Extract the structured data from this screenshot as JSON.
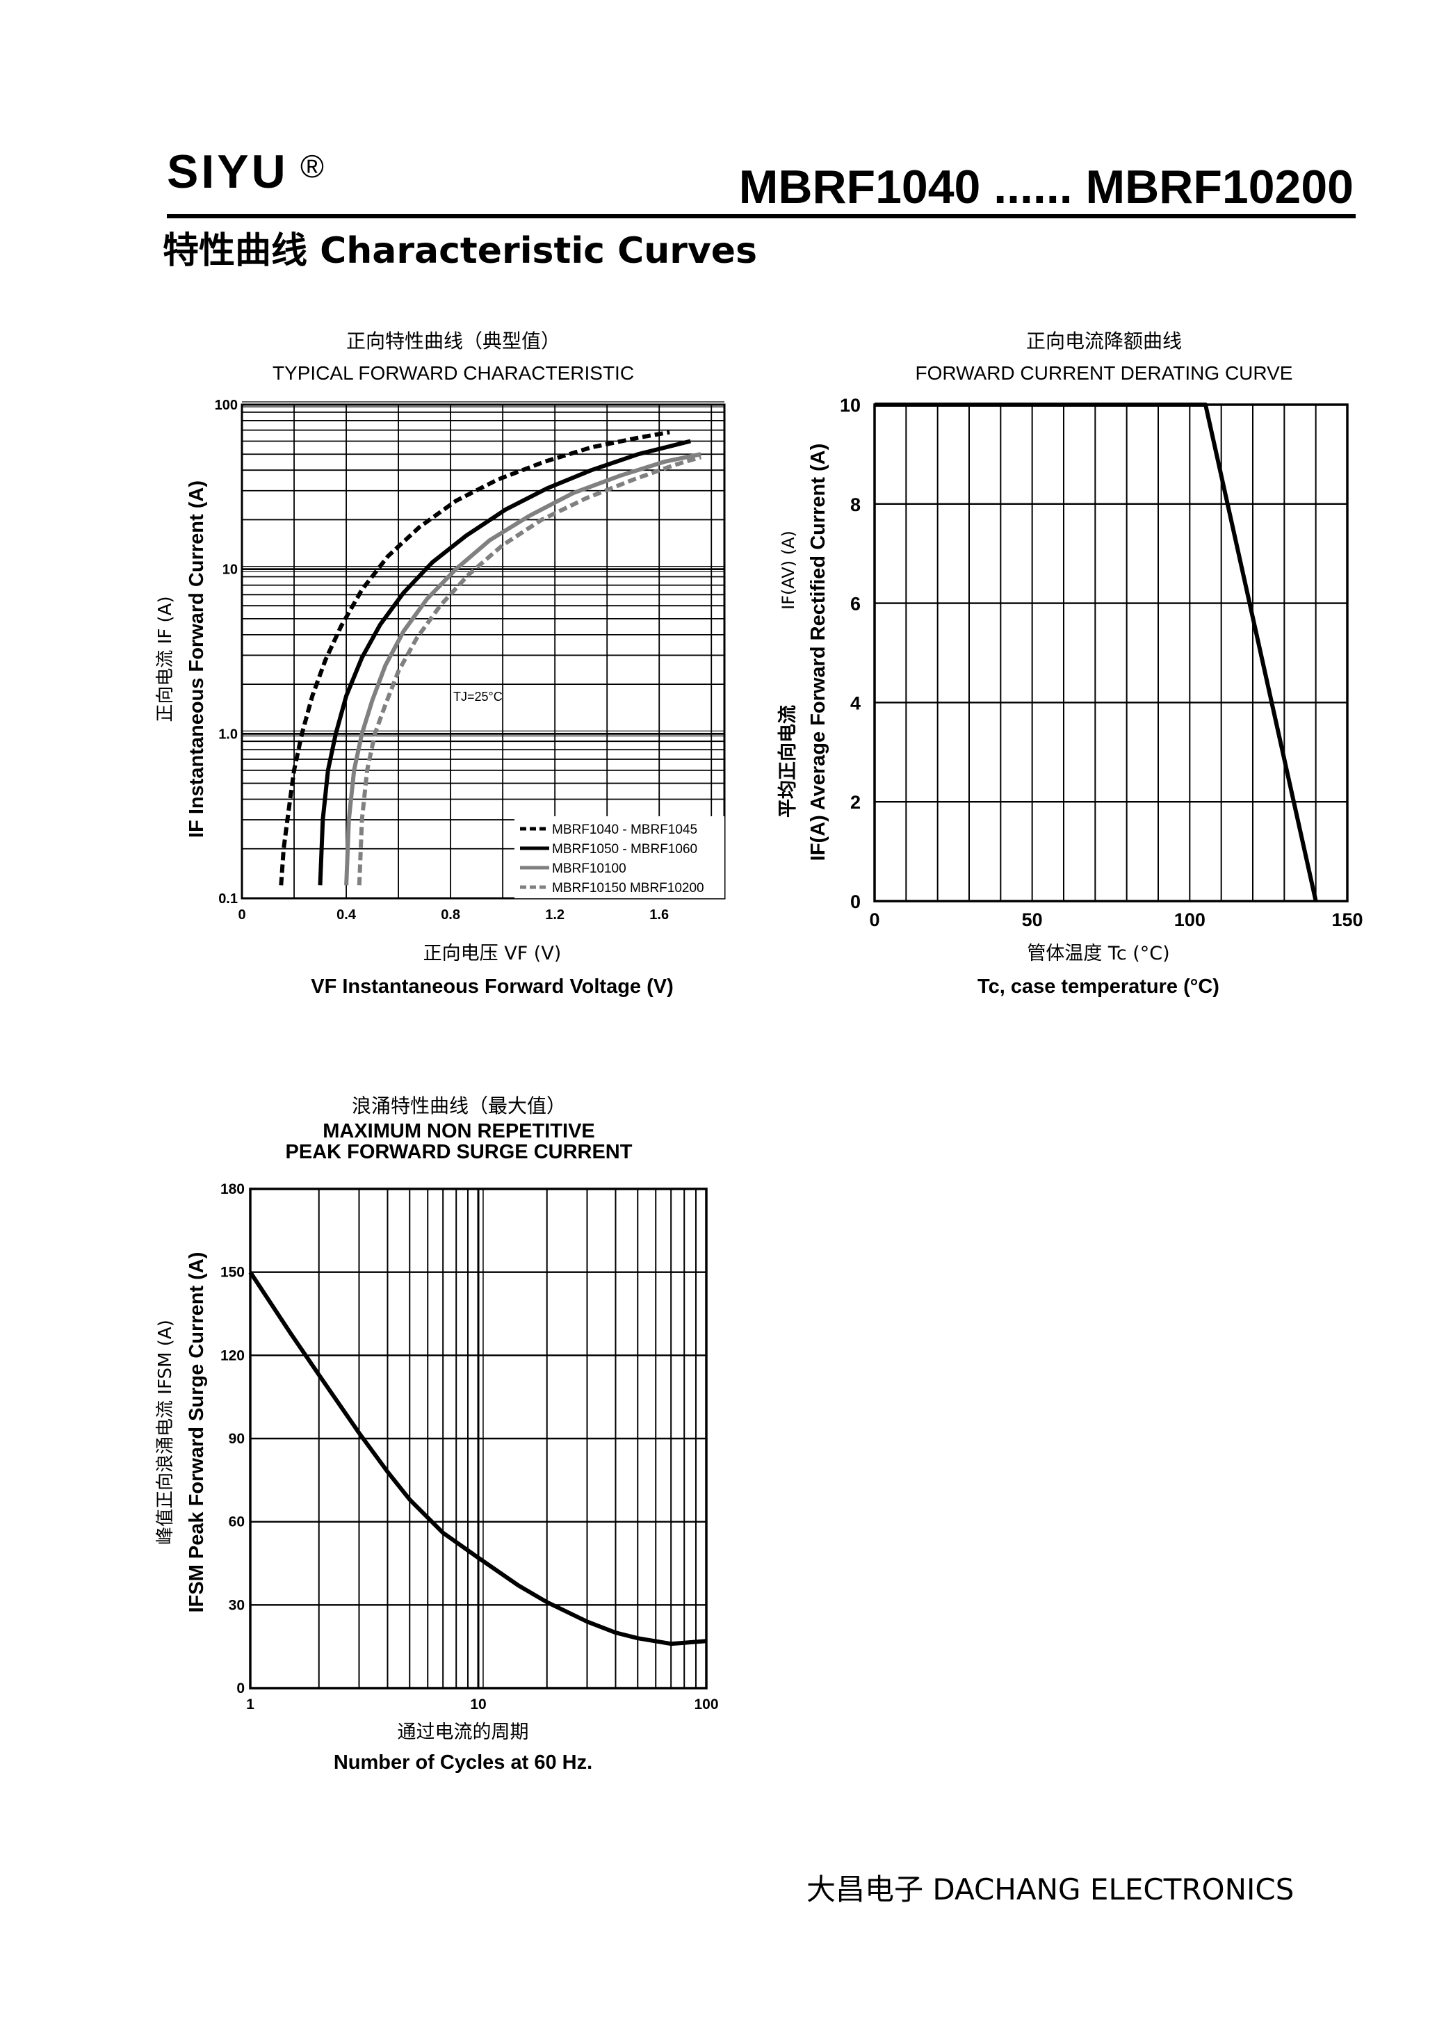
{
  "header": {
    "brand": "SIYU",
    "reg_mark": "®",
    "model_range": "MBRF1040 ...... MBRF10200",
    "subtitle": "特性曲线   Characteristic Curves"
  },
  "footer": {
    "company": "大昌电子   DACHANG ELECTRONICS"
  },
  "chart_data": [
    {
      "id": "forward",
      "type": "line",
      "title_cn": "正向特性曲线（典型值）",
      "title": "TYPICAL FORWARD CHARACTERISTIC",
      "xlabel_cn": "正向电压    VF (V)",
      "xlabel": "VF  Instantaneous Forward Voltage (V)",
      "ylabel_cn": "正向电流    IF (A)",
      "ylabel": "IF Instantaneous Forward Current (A)",
      "xlim": [
        0,
        1.85
      ],
      "ylim": [
        0.1,
        100
      ],
      "yscale": "log",
      "xticks": [
        "0",
        "0.4",
        "0.8",
        "1.2",
        "1.6"
      ],
      "yticks": [
        "0.1",
        "1.0",
        "10",
        "100"
      ],
      "annotation": "TJ=25°C",
      "grid": true,
      "legend_position": "bottom-right",
      "series": [
        {
          "name": "MBRF1040 - MBRF1045",
          "style": "dashed",
          "color": "#000000",
          "x": [
            0.15,
            0.16,
            0.18,
            0.2,
            0.23,
            0.27,
            0.32,
            0.38,
            0.46,
            0.56,
            0.68,
            0.82,
            0.98,
            1.16,
            1.34,
            1.52,
            1.64
          ],
          "y": [
            0.12,
            0.2,
            0.35,
            0.6,
            1.0,
            1.7,
            2.8,
            4.5,
            7.5,
            12,
            18,
            26,
            35,
            45,
            55,
            63,
            68
          ]
        },
        {
          "name": "MBRF1050 - MBRF1060",
          "style": "solid",
          "color": "#000000",
          "x": [
            0.3,
            0.31,
            0.33,
            0.36,
            0.4,
            0.46,
            0.53,
            0.62,
            0.73,
            0.86,
            1.01,
            1.17,
            1.34,
            1.52,
            1.72
          ],
          "y": [
            0.12,
            0.3,
            0.6,
            1.0,
            1.7,
            2.9,
            4.6,
            7.2,
            11,
            16,
            23,
            31,
            40,
            50,
            60
          ]
        },
        {
          "name": "MBRF10100",
          "style": "solid",
          "color": "#808080",
          "x": [
            0.4,
            0.41,
            0.43,
            0.46,
            0.5,
            0.55,
            0.62,
            0.71,
            0.82,
            0.95,
            1.1,
            1.27,
            1.45,
            1.62,
            1.76
          ],
          "y": [
            0.12,
            0.3,
            0.6,
            1.0,
            1.6,
            2.6,
            4.2,
            6.6,
            10,
            15,
            21,
            29,
            37,
            45,
            50
          ]
        },
        {
          "name": "MBRF10150 MBRF10200",
          "style": "dashed",
          "color": "#808080",
          "x": [
            0.45,
            0.46,
            0.48,
            0.51,
            0.55,
            0.6,
            0.67,
            0.76,
            0.87,
            1.0,
            1.15,
            1.32,
            1.5,
            1.66,
            1.76
          ],
          "y": [
            0.12,
            0.3,
            0.6,
            1.0,
            1.5,
            2.4,
            3.8,
            6.0,
            9.3,
            14,
            20,
            27,
            35,
            43,
            48
          ]
        }
      ]
    },
    {
      "id": "derating",
      "type": "line",
      "title_cn": "正向电流降额曲线",
      "title": "FORWARD CURRENT DERATING CURVE",
      "xlabel_cn": "管体温度  Tc (°C)",
      "xlabel": "Tc, case  temperature (°C)",
      "ylabel_cn": "平均正向电流",
      "ylabel_unit_cn": "IF(AV)   (A)",
      "ylabel": "IF(A)  Average Forward Rectified Current (A)",
      "xlim": [
        0,
        150
      ],
      "ylim": [
        0,
        10
      ],
      "xticks": [
        "0",
        "50",
        "100",
        "150"
      ],
      "yticks": [
        "0",
        "2",
        "4",
        "6",
        "8",
        "10"
      ],
      "grid": true,
      "series": [
        {
          "x": [
            0,
            105,
            140
          ],
          "y": [
            10,
            10,
            0
          ]
        }
      ]
    },
    {
      "id": "surge",
      "type": "line",
      "title_cn": "浪涌特性曲线（最大值）",
      "title": "MAXIMUM NON REPETITIVE",
      "title2": "PEAK FORWARD SURGE CURRENT",
      "xlabel_cn": "通过电流的周期",
      "xlabel": "Number  of  Cycles at 60 Hz.",
      "ylabel_cn": "峰值正向浪涌电流   IFSM (A)",
      "ylabel": "IFSM Peak Forward Surge Current (A)",
      "xlim": [
        1,
        100
      ],
      "xscale": "log",
      "ylim": [
        0,
        180
      ],
      "xticks": [
        "1",
        "10",
        "100"
      ],
      "yticks": [
        "0",
        "30",
        "60",
        "90",
        "120",
        "150",
        "180"
      ],
      "grid": true,
      "series": [
        {
          "x": [
            1,
            1.5,
            2,
            3,
            4,
            5,
            7,
            10,
            15,
            20,
            30,
            40,
            50,
            70,
            100
          ],
          "y": [
            150,
            128,
            113,
            92,
            78,
            68,
            56,
            47,
            37,
            31,
            24,
            20,
            18,
            16,
            17
          ]
        }
      ]
    }
  ]
}
